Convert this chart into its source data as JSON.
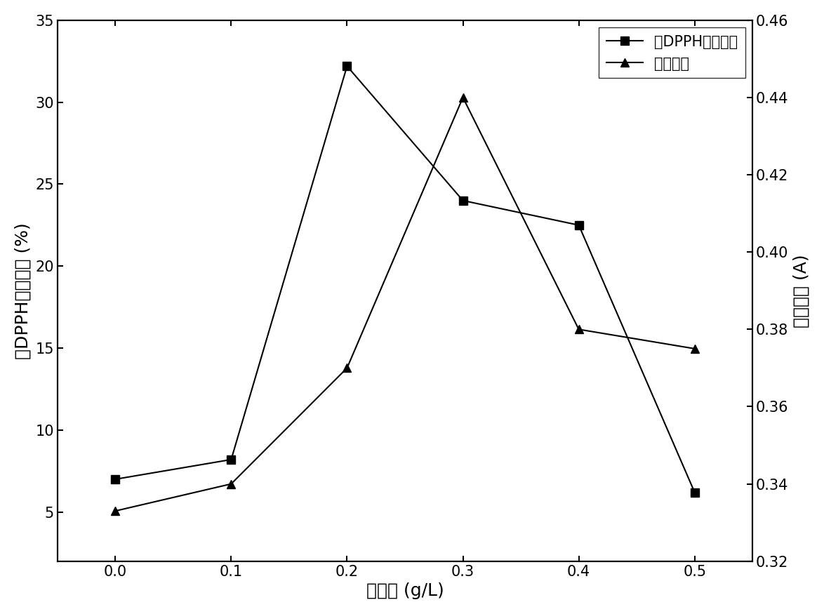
{
  "x": [
    0.0,
    0.1,
    0.2,
    0.3,
    0.4,
    0.5
  ],
  "y_dpph": [
    7.0,
    8.2,
    32.2,
    24.0,
    22.5,
    6.2
  ],
  "y_flavone": [
    0.333,
    0.34,
    0.37,
    0.44,
    0.38,
    0.375
  ],
  "xlabel": "加酶量 (g/L)",
  "ylabel_left": "对DPPH的清除率 (%)",
  "ylabel_right": "黄酮浓度 (A)",
  "legend_dpph": "对DPPH的清除率",
  "legend_flavone": "黄酮浓度",
  "ylim_left": [
    2,
    35
  ],
  "ylim_right": [
    0.32,
    0.46
  ],
  "xlim": [
    -0.05,
    0.55
  ],
  "yticks_left": [
    5,
    10,
    15,
    20,
    25,
    30,
    35
  ],
  "yticks_right": [
    0.32,
    0.34,
    0.36,
    0.38,
    0.4,
    0.42,
    0.44,
    0.46
  ],
  "xticks": [
    0.0,
    0.1,
    0.2,
    0.3,
    0.4,
    0.5
  ],
  "line_color": "#000000",
  "bg_color": "#ffffff",
  "marker_square": "s",
  "marker_triangle": "^",
  "markersize": 9,
  "linewidth": 1.5,
  "fontsize_label": 18,
  "fontsize_tick": 15,
  "fontsize_legend": 15
}
